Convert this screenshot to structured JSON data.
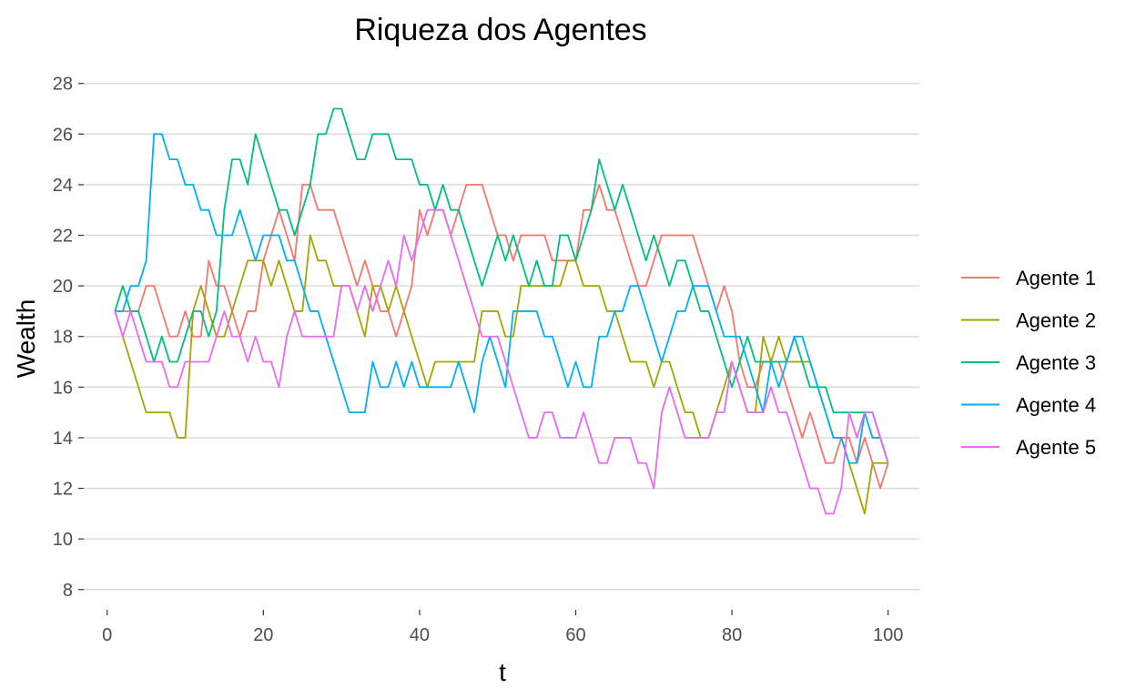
{
  "chart_data": {
    "type": "line",
    "title": "Riqueza dos Agentes",
    "xlabel": "t",
    "ylabel": "Wealth",
    "xlim": [
      -3,
      104
    ],
    "ylim": [
      7.2,
      28.6
    ],
    "xticks": [
      0,
      20,
      40,
      60,
      80,
      100
    ],
    "yticks": [
      8,
      10,
      12,
      14,
      16,
      18,
      20,
      22,
      24,
      26,
      28
    ],
    "grid": true,
    "legend_position": "right",
    "x": [
      1,
      2,
      3,
      4,
      5,
      6,
      7,
      8,
      9,
      10,
      11,
      12,
      13,
      14,
      15,
      16,
      17,
      18,
      19,
      20,
      21,
      22,
      23,
      24,
      25,
      26,
      27,
      28,
      29,
      30,
      31,
      32,
      33,
      34,
      35,
      36,
      37,
      38,
      39,
      40,
      41,
      42,
      43,
      44,
      45,
      46,
      47,
      48,
      49,
      50,
      51,
      52,
      53,
      54,
      55,
      56,
      57,
      58,
      59,
      60,
      61,
      62,
      63,
      64,
      65,
      66,
      67,
      68,
      69,
      70,
      71,
      72,
      73,
      74,
      75,
      76,
      77,
      78,
      79,
      80,
      81,
      82,
      83,
      84,
      85,
      86,
      87,
      88,
      89,
      90,
      91,
      92,
      93,
      94,
      95,
      96,
      97,
      98,
      99,
      100
    ],
    "series": [
      {
        "name": "Agente 1",
        "color": "#F8766D",
        "values": [
          19,
          19,
          19,
          19,
          20,
          20,
          19,
          18,
          18,
          19,
          18,
          18,
          21,
          20,
          20,
          19,
          18,
          19,
          19,
          21,
          22,
          23,
          22,
          21,
          24,
          24,
          23,
          23,
          23,
          22,
          21,
          20,
          21,
          20,
          19,
          19,
          18,
          19,
          20,
          23,
          22,
          23,
          23,
          22,
          23,
          24,
          24,
          24,
          23,
          22,
          22,
          21,
          22,
          22,
          22,
          22,
          21,
          21,
          21,
          21,
          23,
          23,
          24,
          23,
          23,
          22,
          21,
          20,
          20,
          21,
          22,
          22,
          22,
          22,
          22,
          21,
          20,
          19,
          20,
          19,
          17,
          16,
          16,
          17,
          17,
          17,
          16,
          15,
          14,
          15,
          14,
          13,
          13,
          14,
          14,
          13,
          14,
          13,
          12,
          13
        ]
      },
      {
        "name": "Agente 2",
        "color": "#A3A500",
        "values": [
          19,
          18,
          17,
          16,
          15,
          15,
          15,
          15,
          14,
          14,
          19,
          20,
          19,
          18,
          18,
          19,
          20,
          21,
          21,
          21,
          20,
          21,
          20,
          19,
          19,
          22,
          21,
          21,
          20,
          20,
          20,
          19,
          18,
          20,
          20,
          19,
          20,
          19,
          18,
          17,
          16,
          17,
          17,
          17,
          17,
          17,
          17,
          19,
          19,
          19,
          18,
          18,
          20,
          20,
          20,
          20,
          20,
          20,
          21,
          21,
          20,
          20,
          20,
          19,
          19,
          18,
          17,
          17,
          17,
          16,
          17,
          17,
          16,
          15,
          15,
          14,
          14,
          15,
          16,
          17,
          16,
          15,
          15,
          18,
          17,
          18,
          17,
          17,
          17,
          17,
          16,
          15,
          14,
          14,
          13,
          12,
          11,
          13,
          13,
          13
        ]
      },
      {
        "name": "Agente 3",
        "color": "#00BF7D",
        "values": [
          19,
          20,
          19,
          19,
          18,
          17,
          18,
          17,
          17,
          18,
          19,
          19,
          18,
          19,
          23,
          25,
          25,
          24,
          26,
          25,
          24,
          23,
          23,
          22,
          23,
          24,
          26,
          26,
          27,
          27,
          26,
          25,
          25,
          26,
          26,
          26,
          25,
          25,
          25,
          24,
          24,
          23,
          24,
          23,
          23,
          22,
          21,
          20,
          21,
          22,
          21,
          22,
          21,
          20,
          21,
          20,
          20,
          22,
          22,
          21,
          22,
          23,
          25,
          24,
          23,
          24,
          23,
          22,
          21,
          22,
          21,
          20,
          21,
          21,
          20,
          19,
          19,
          18,
          17,
          16,
          17,
          18,
          17,
          17,
          17,
          17,
          17,
          18,
          17,
          16,
          16,
          16,
          15,
          15,
          15,
          15,
          15,
          15,
          14,
          13
        ]
      },
      {
        "name": "Agente 4",
        "color": "#00B0F6",
        "values": [
          19,
          19,
          20,
          20,
          21,
          26,
          26,
          25,
          25,
          24,
          24,
          23,
          23,
          22,
          22,
          22,
          23,
          22,
          21,
          22,
          22,
          22,
          21,
          21,
          20,
          19,
          19,
          18,
          17,
          16,
          15,
          15,
          15,
          17,
          16,
          16,
          17,
          16,
          17,
          16,
          16,
          16,
          16,
          16,
          17,
          16,
          15,
          17,
          18,
          17,
          16,
          19,
          19,
          19,
          19,
          18,
          18,
          17,
          16,
          17,
          16,
          16,
          18,
          18,
          19,
          19,
          20,
          20,
          19,
          18,
          17,
          18,
          19,
          19,
          20,
          20,
          20,
          19,
          18,
          18,
          18,
          17,
          16,
          15,
          17,
          16,
          17,
          18,
          18,
          17,
          16,
          15,
          14,
          14,
          13,
          13,
          15,
          14,
          14,
          13
        ]
      },
      {
        "name": "Agente 5",
        "color": "#E76BF3",
        "values": [
          19,
          18,
          19,
          18,
          17,
          17,
          17,
          16,
          16,
          17,
          17,
          17,
          17,
          18,
          19,
          18,
          18,
          17,
          18,
          17,
          17,
          16,
          18,
          19,
          18,
          18,
          18,
          18,
          18,
          20,
          20,
          19,
          20,
          19,
          20,
          21,
          20,
          22,
          21,
          22,
          23,
          23,
          23,
          22,
          21,
          20,
          19,
          18,
          18,
          18,
          17,
          16,
          15,
          14,
          14,
          15,
          15,
          14,
          14,
          14,
          15,
          14,
          13,
          13,
          14,
          14,
          14,
          13,
          13,
          12,
          15,
          16,
          15,
          14,
          14,
          14,
          14,
          15,
          15,
          17,
          16,
          15,
          15,
          15,
          16,
          15,
          15,
          14,
          13,
          12,
          12,
          11,
          11,
          12,
          15,
          14,
          15,
          15,
          14,
          13
        ]
      }
    ]
  }
}
